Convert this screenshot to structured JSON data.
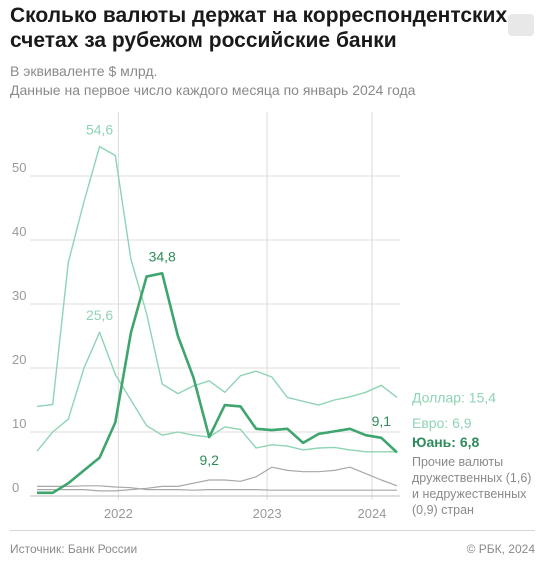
{
  "header": {
    "title_line1": "Сколько валюты держат на корреспондентских",
    "title_line2": "счетах за рубежом российские банки",
    "subtitle_line1": "В эквиваленте $ млрд.",
    "subtitle_line2": "Данные на первое число каждого месяца по январь 2024 года"
  },
  "footer": {
    "source": "Источник: Банк России",
    "copyright": "© РБК, 2024"
  },
  "colors": {
    "dollar": "#8fd4b4",
    "euro": "#8fd4b4",
    "yuan": "#3ea56e",
    "other": "#a8a8a8",
    "grid": "#dcdcdc",
    "axis_text": "#9a9a9a"
  },
  "chart_data": {
    "type": "line",
    "x_start": "2021-01",
    "x_end": "2024-01",
    "ylim": [
      0,
      60
    ],
    "yticks": [
      "0",
      "10",
      "20",
      "30",
      "40",
      "50"
    ],
    "xticks": [
      {
        "label": "2022",
        "month_index": 12
      },
      {
        "label": "2023",
        "month_index": 24
      },
      {
        "label": "2024",
        "month_index": 36
      }
    ],
    "grid": true,
    "series": [
      {
        "name": "Доллар",
        "key": "dollar",
        "values": [
          14.0,
          14.3,
          36.5,
          46.0,
          54.6,
          53.2,
          37.0,
          28.5,
          17.5,
          16.0,
          17.2,
          18.0,
          16.2,
          18.8,
          19.5,
          18.6,
          15.4,
          14.8,
          14.2,
          15.0,
          15.5,
          16.2,
          17.3,
          15.4
        ],
        "month_indices": [
          0,
          1,
          2,
          3,
          4,
          5,
          6,
          7,
          8,
          9,
          10,
          11,
          12,
          13,
          14,
          15,
          16,
          17,
          18,
          19,
          20,
          21,
          22,
          23
        ]
      },
      {
        "name": "Евро",
        "key": "euro",
        "values": [
          7.0,
          10.0,
          12.0,
          20.0,
          25.6,
          19.0,
          15.0,
          11.0,
          9.5,
          10.0,
          9.5,
          9.2,
          10.8,
          10.4,
          7.5,
          8.0,
          7.8,
          7.2,
          7.5,
          7.6,
          7.2,
          6.9,
          6.9,
          6.9
        ],
        "month_indices": [
          0,
          1,
          2,
          3,
          4,
          5,
          6,
          7,
          8,
          9,
          10,
          11,
          12,
          13,
          14,
          15,
          16,
          17,
          18,
          19,
          20,
          21,
          22,
          23
        ]
      },
      {
        "name": "Юань",
        "key": "yuan",
        "values": [
          0.5,
          0.5,
          2.0,
          4.0,
          6.0,
          11.5,
          25.5,
          34.3,
          34.8,
          25.0,
          18.5,
          9.2,
          14.2,
          14.0,
          10.5,
          10.3,
          10.5,
          8.3,
          9.7,
          10.1,
          10.5,
          9.5,
          9.1,
          6.8
        ],
        "month_indices": [
          0,
          1,
          2,
          3,
          4,
          5,
          6,
          7,
          8,
          9,
          10,
          11,
          12,
          13,
          14,
          15,
          16,
          17,
          18,
          19,
          20,
          21,
          22,
          23
        ]
      },
      {
        "name": "Прочие валюты дружественных",
        "key": "other_friendly",
        "values": [
          1.0,
          1.0,
          1.0,
          1.0,
          0.8,
          0.8,
          1.0,
          1.2,
          1.5,
          1.5,
          2.0,
          2.5,
          2.5,
          2.3,
          3.0,
          4.5,
          4.0,
          3.8,
          3.8,
          4.0,
          4.5,
          3.5,
          2.5,
          1.6
        ],
        "month_indices": [
          0,
          1,
          2,
          3,
          4,
          5,
          6,
          7,
          8,
          9,
          10,
          11,
          12,
          13,
          14,
          15,
          16,
          17,
          18,
          19,
          20,
          21,
          22,
          23
        ]
      },
      {
        "name": "недружественных",
        "key": "other_unfriendly",
        "values": [
          1.5,
          1.5,
          1.5,
          1.6,
          1.6,
          1.4,
          1.3,
          1.0,
          1.0,
          1.0,
          0.9,
          1.0,
          1.0,
          1.0,
          1.0,
          0.9,
          0.9,
          0.9,
          0.9,
          0.9,
          0.9,
          0.9,
          0.9,
          0.9
        ],
        "month_indices": [
          0,
          1,
          2,
          3,
          4,
          5,
          6,
          7,
          8,
          9,
          10,
          11,
          12,
          13,
          14,
          15,
          16,
          17,
          18,
          19,
          20,
          21,
          22,
          23
        ]
      }
    ],
    "annotations": [
      {
        "text": "54,6",
        "series": "dollar",
        "point": 4
      },
      {
        "text": "25,6",
        "series": "euro",
        "point": 4
      },
      {
        "text": "34,8",
        "series": "yuan",
        "point": 8
      },
      {
        "text": "9,2",
        "series": "yuan",
        "point": 11
      },
      {
        "text": "9,1",
        "series": "yuan",
        "point": 22
      }
    ],
    "end_labels": {
      "dollar": "Доллар: 15,4",
      "euro": "Евро: 6,9",
      "yuan": "Юань: 6,8",
      "other_line1": "Прочие валюты",
      "other_line2": "дружественных (1,6)",
      "other_line3": "и недружественных",
      "other_line4": "(0,9) стран"
    }
  }
}
